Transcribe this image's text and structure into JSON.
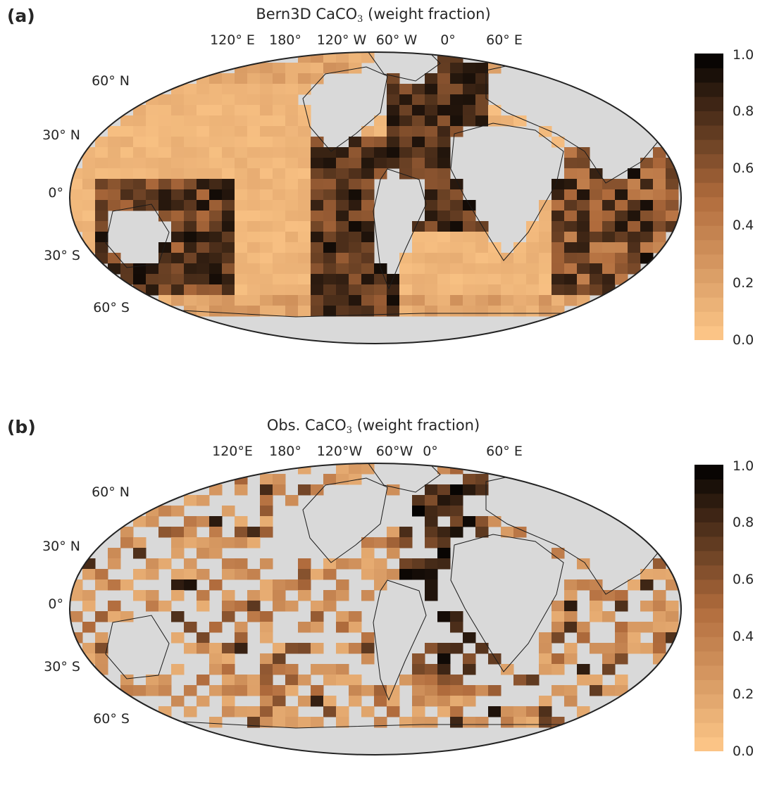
{
  "panels": [
    {
      "id": "a",
      "letter": "(a)",
      "title_main": "Bern3D CaCO",
      "title_sub": "3",
      "title_tail": " (weight fraction)",
      "lon_labels": [
        "120° E",
        "180°",
        "120° W",
        "60° W",
        "0°",
        "60° E"
      ],
      "lat_labels": [
        "60° N",
        "30° N",
        "0°",
        "30° S",
        "60° S"
      ]
    },
    {
      "id": "b",
      "letter": "(b)",
      "title_main": "Obs. CaCO",
      "title_sub": "3",
      "title_tail": " (weight fraction)",
      "lon_labels": [
        "120°E",
        "180°",
        "120°W",
        "60°W",
        "0°",
        "60° E"
      ],
      "lat_labels": [
        "60° N",
        "30° N",
        "0°",
        "30° S",
        "60° S"
      ]
    }
  ],
  "colorbar": {
    "ticks": [
      "0.0",
      "0.2",
      "0.4",
      "0.6",
      "0.8",
      "1.0"
    ],
    "range": [
      0,
      1
    ],
    "colormap": "copper (reversed)",
    "colors": {
      "low": "#ffc98a",
      "mid": "#b06b3c",
      "high": "#000000"
    }
  },
  "map": {
    "projection": "Robinson",
    "land_color": "#d9d9d9",
    "coastline_color": "#1a1a1a"
  }
}
